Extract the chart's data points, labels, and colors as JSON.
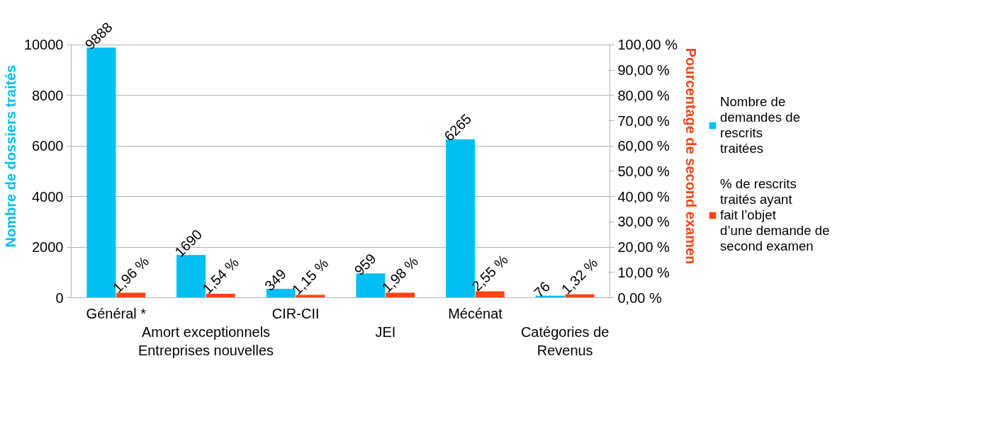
{
  "chart_data": {
    "type": "bar",
    "categories": [
      "Général *",
      "Amort exceptionnels\nEntreprises nouvelles",
      "CIR-CII",
      "JEI",
      "Mécénat",
      "Catégories de\nRevenus"
    ],
    "ylabel": "Nombre de dossiers traités",
    "y2label": "Pourcentage de second examen",
    "ylim": [
      0,
      10000
    ],
    "yticks": [
      0,
      2000,
      4000,
      6000,
      8000,
      10000
    ],
    "y2lim": [
      0,
      100
    ],
    "y2ticks": [
      {
        "value": 0,
        "label": "0,00 %"
      },
      {
        "value": 10,
        "label": "10,00 %"
      },
      {
        "value": 20,
        "label": "20,00 %"
      },
      {
        "value": 30,
        "label": "30,00 %"
      },
      {
        "value": 40,
        "label": "40,00 %"
      },
      {
        "value": 50,
        "label": "50,00 %"
      },
      {
        "value": 60,
        "label": "60,00 %"
      },
      {
        "value": 70,
        "label": "70,00 %"
      },
      {
        "value": 80,
        "label": "80,00 %"
      },
      {
        "value": 90,
        "label": "90,00 %"
      },
      {
        "value": 100,
        "label": "100,00 %"
      }
    ],
    "series": [
      {
        "name": "Nombre de demandes de rescrits  traitées",
        "color": "#00bff3",
        "values": [
          9888,
          1690,
          349,
          959,
          6265,
          76
        ],
        "value_labels": [
          "9888",
          "1690",
          "349",
          "959",
          "6265",
          "76"
        ]
      },
      {
        "name": "% de rescrits traités ayant fait l’objet d’une demande de second examen",
        "color": "#ff4513",
        "axis": "y2",
        "values": [
          1.96,
          1.54,
          1.15,
          1.98,
          2.55,
          1.32
        ],
        "value_labels": [
          "1,96 %",
          "1,54 %",
          "1,15 %",
          "1,98 %",
          "2,55 %",
          "1,32 %"
        ]
      }
    ],
    "grid": "y",
    "legend": "right"
  }
}
